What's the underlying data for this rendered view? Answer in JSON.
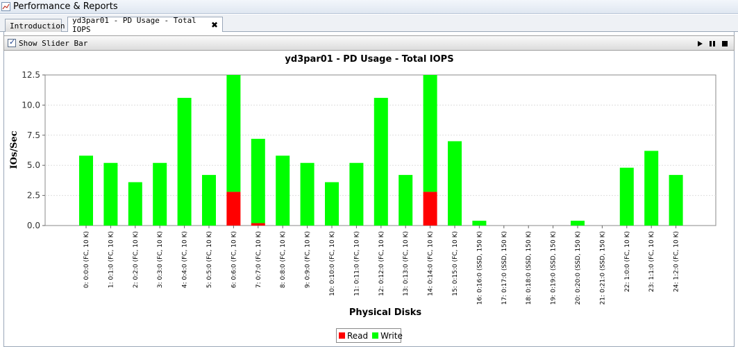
{
  "window": {
    "title": "Performance & Reports"
  },
  "tabs": [
    {
      "label": "Introduction"
    },
    {
      "label": "yd3par01 - PD Usage - Total IOPS",
      "close": "✖"
    }
  ],
  "toolbar": {
    "show_slider_label": "Show Slider Bar",
    "show_slider_checked": true
  },
  "colors": {
    "read": "#ff0000",
    "write": "#00ff00"
  },
  "chart_data": {
    "type": "bar",
    "stacked": true,
    "title": "yd3par01 - PD Usage - Total IOPS",
    "xlabel": "Physical Disks",
    "ylabel": "IOs/Sec",
    "ylim": [
      0,
      12.5
    ],
    "yticks": [
      "0.0",
      "2.5",
      "5.0",
      "7.5",
      "10.0",
      "12.5"
    ],
    "grid": true,
    "legend_position": "bottom",
    "categories": [
      "0: 0:0:0 (FC, 10 K)",
      "1: 0:1:0 (FC, 10 K)",
      "2: 0:2:0 (FC, 10 K)",
      "3: 0:3:0 (FC, 10 K)",
      "4: 0:4:0 (FC, 10 K)",
      "5: 0:5:0 (FC, 10 K)",
      "6: 0:6:0 (FC, 10 K)",
      "7: 0:7:0 (FC, 10 K)",
      "8: 0:8:0 (FC, 10 K)",
      "9: 0:9:0 (FC, 10 K)",
      "10: 0:10:0 (FC, 10 K)",
      "11: 0:11:0 (FC, 10 K)",
      "12: 0:12:0 (FC, 10 K)",
      "13: 0:13:0 (FC, 10 K)",
      "14: 0:14:0 (FC, 10 K)",
      "15: 0:15:0 (FC, 10 K)",
      "16: 0:16:0 (SSD, 150 K)",
      "17: 0:17:0 (SSD, 150 K)",
      "18: 0:18:0 (SSD, 150 K)",
      "19: 0:19:0 (SSD, 150 K)",
      "20: 0:20:0 (SSD, 150 K)",
      "21: 0:21:0 (SSD, 150 K)",
      "22: 1:0:0 (FC, 10 K)",
      "23: 1:1:0 (FC, 10 K)",
      "24: 1:2:0 (FC, 10 K)"
    ],
    "series": [
      {
        "name": "Read",
        "values": [
          0,
          0,
          0,
          0,
          0,
          0,
          2.8,
          0.2,
          0,
          0,
          0,
          0,
          0,
          0,
          2.8,
          0,
          0,
          0,
          0,
          0,
          0,
          0,
          0,
          0,
          0
        ]
      },
      {
        "name": "Write",
        "values": [
          5.8,
          5.2,
          3.6,
          5.2,
          10.6,
          4.2,
          9.8,
          7.0,
          5.8,
          5.2,
          3.6,
          5.2,
          10.6,
          4.2,
          9.8,
          7.0,
          0.4,
          0,
          0,
          0,
          0.4,
          0,
          4.8,
          6.2,
          4.2
        ]
      }
    ]
  }
}
